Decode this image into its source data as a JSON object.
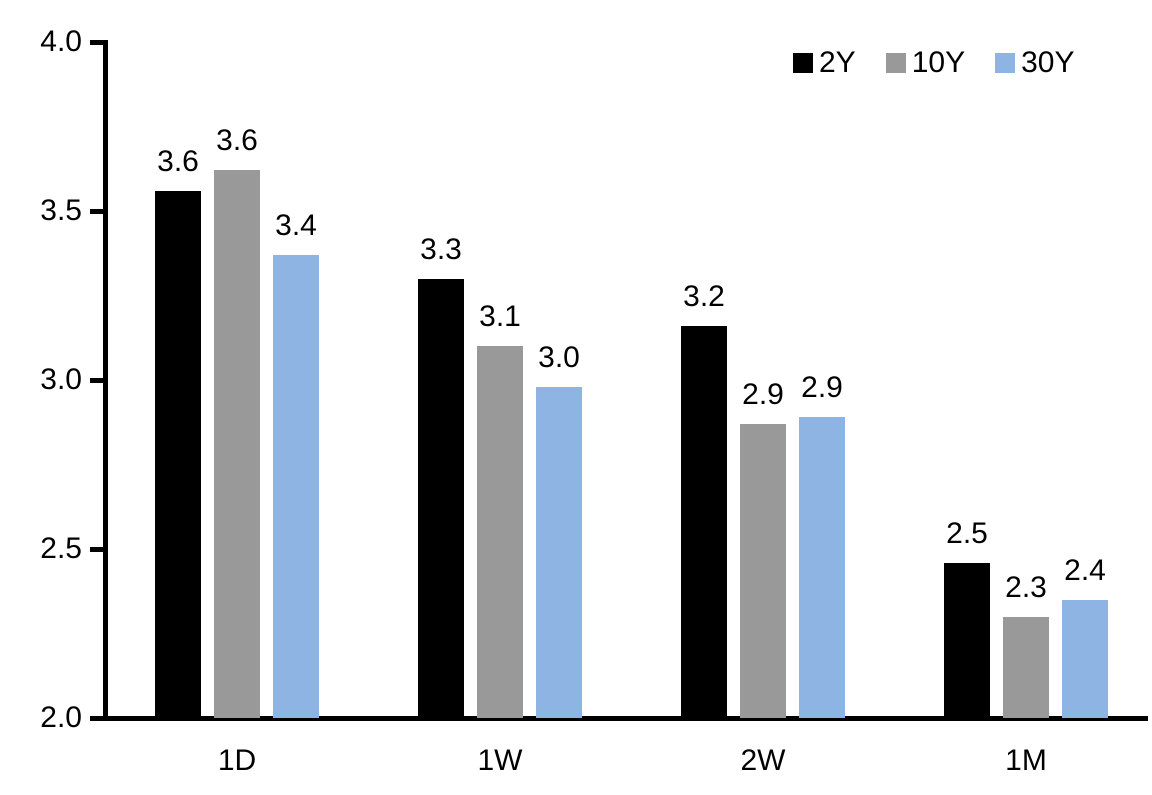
{
  "chart_data": {
    "type": "bar",
    "title": "",
    "categories": [
      "1D",
      "1W",
      "2W",
      "1M"
    ],
    "series": [
      {
        "name": "2Y",
        "color": "#000000",
        "values": [
          3.56,
          3.3,
          3.16,
          2.46
        ],
        "labels": [
          "3.6",
          "3.3",
          "3.2",
          "2.5"
        ]
      },
      {
        "name": "10Y",
        "color": "#999999",
        "values": [
          3.62,
          3.1,
          2.87,
          2.3
        ],
        "labels": [
          "3.6",
          "3.1",
          "2.9",
          "2.3"
        ]
      },
      {
        "name": "30Y",
        "color": "#8EB4E3",
        "values": [
          3.37,
          2.98,
          2.89,
          2.35
        ],
        "labels": [
          "3.4",
          "3.0",
          "2.9",
          "2.4"
        ]
      }
    ],
    "xlabel": "",
    "ylabel": "",
    "ylim": [
      2.0,
      4.0
    ],
    "y_ticks": [
      "4.0",
      "3.5",
      "3.0",
      "2.5",
      "2.0"
    ],
    "y_tick_values": [
      4.0,
      3.5,
      3.0,
      2.5,
      2.0
    ],
    "grid": false,
    "legend_position": "top-right",
    "data_labels_shown": true,
    "axis_color": "#000000",
    "text_color": "#000000",
    "background_color": "#ffffff"
  }
}
